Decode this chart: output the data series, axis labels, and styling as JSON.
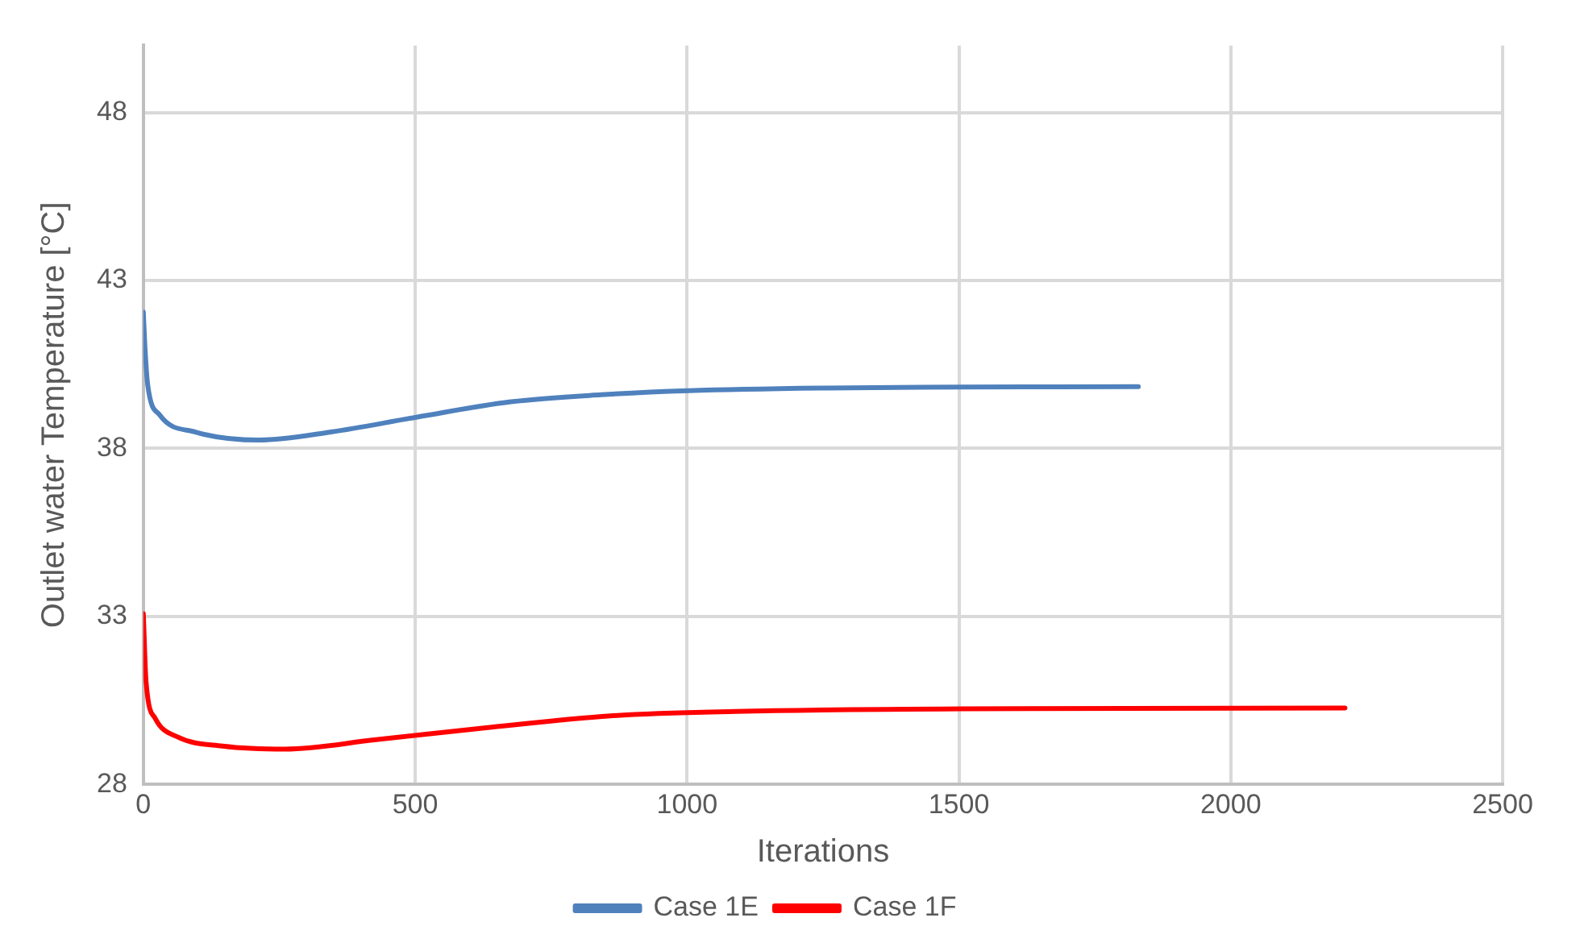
{
  "chart_data": {
    "type": "line",
    "xlabel": "Iterations",
    "ylabel": "Outlet water Temperature [°C]",
    "xlim": [
      0,
      2500
    ],
    "xticks": [
      0,
      500,
      1000,
      1500,
      2000,
      2500
    ],
    "ylim": [
      28,
      50
    ],
    "yticks": [
      28,
      33,
      38,
      43,
      48
    ],
    "grid": true,
    "legend": "bottom",
    "marker": "none",
    "line_style": "solid",
    "series": [
      {
        "name": "Case 1E",
        "color": "#4f81bd",
        "x": [
          0,
          3,
          8,
          30,
          96,
          212,
          345,
          502,
          676,
          842,
          1004,
          1256,
          1505,
          1830
        ],
        "values": [
          42.06,
          41.0,
          39.9,
          39.0,
          38.49,
          38.25,
          38.49,
          38.93,
          39.39,
          39.6,
          39.72,
          39.8,
          39.83,
          39.84
        ]
      },
      {
        "name": "Case 1F",
        "color": "#ff0000",
        "x": [
          0,
          5,
          22,
          63,
          146,
          261,
          428,
          627,
          859,
          1090,
          1505,
          2210
        ],
        "values": [
          33.08,
          31.05,
          29.96,
          29.41,
          29.14,
          29.05,
          29.33,
          29.68,
          30.04,
          30.17,
          30.25,
          30.27
        ]
      }
    ]
  }
}
